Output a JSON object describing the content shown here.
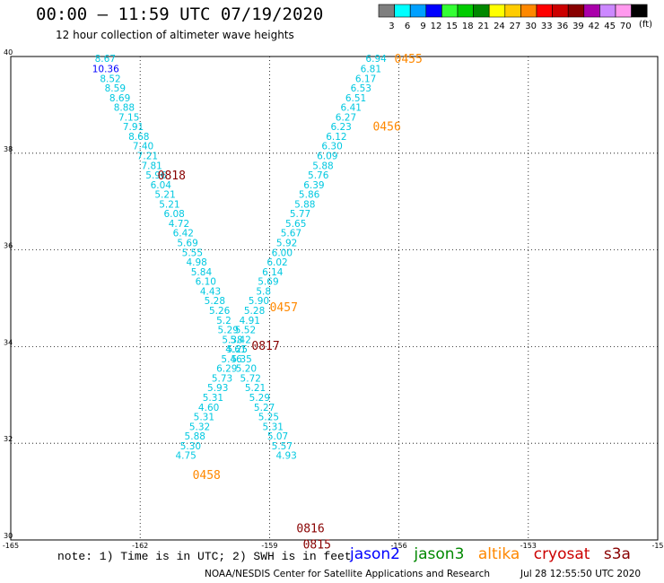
{
  "title": "00:00 – 11:59 UTC 07/19/2020",
  "subtitle": "12 hour collection of altimeter wave heights",
  "colorbar": {
    "unit": "(ft)",
    "bins": [
      {
        "label": "3",
        "color": "#7f7f7f"
      },
      {
        "label": "6",
        "color": "#00ffff"
      },
      {
        "label": "9",
        "color": "#00a0ff"
      },
      {
        "label": "12",
        "color": "#0000ff"
      },
      {
        "label": "15",
        "color": "#33ff33"
      },
      {
        "label": "18",
        "color": "#00cc00"
      },
      {
        "label": "21",
        "color": "#008800"
      },
      {
        "label": "24",
        "color": "#ffff00"
      },
      {
        "label": "27",
        "color": "#ffcc00"
      },
      {
        "label": "30",
        "color": "#ff8800"
      },
      {
        "label": "33",
        "color": "#ff0000"
      },
      {
        "label": "36",
        "color": "#cc0000"
      },
      {
        "label": "39",
        "color": "#880000"
      },
      {
        "label": "42",
        "color": "#aa00aa"
      },
      {
        "label": "45",
        "color": "#cc88ff"
      },
      {
        "label": "70",
        "color": "#ff99ee"
      },
      {
        "label": "",
        "color": "#000000"
      }
    ]
  },
  "note": "note: 1) Time is in UTC; 2) SWH is in feet",
  "satellites": [
    {
      "name": "jason2",
      "color": "#0000ff"
    },
    {
      "name": "jason3",
      "color": "#008800"
    },
    {
      "name": "altika",
      "color": "#ff8800"
    },
    {
      "name": "cryosat",
      "color": "#cc0000"
    },
    {
      "name": "s3a",
      "color": "#880000"
    }
  ],
  "credit": "NOAA/NESDIS Center for Satellite Applications and Research",
  "credit_time": "Jul 28 12:55:50 UTC 2020",
  "chart_data": {
    "type": "scatter",
    "xlim": [
      -165,
      -150
    ],
    "ylim": [
      30,
      40
    ],
    "x_ticks": [
      "-165",
      "-162",
      "-159",
      "-156",
      "-153",
      "-15"
    ],
    "y_ticks": [
      "30",
      "32",
      "34",
      "36",
      "38",
      "40"
    ],
    "grid": true,
    "track_labels": [
      {
        "text": "0455",
        "x": -155.78,
        "y": 39.96,
        "color": "#ff8800"
      },
      {
        "text": "0456",
        "x": -156.28,
        "y": 38.56,
        "color": "#ff8800"
      },
      {
        "text": "0818",
        "x": -161.27,
        "y": 37.55,
        "color": "#880000"
      },
      {
        "text": "0457",
        "x": -158.67,
        "y": 34.82,
        "color": "#ff8800"
      },
      {
        "text": "0817",
        "x": -159.09,
        "y": 34.03,
        "color": "#880000"
      },
      {
        "text": "0458",
        "x": -160.46,
        "y": 31.35,
        "color": "#ff8800"
      },
      {
        "text": "0816",
        "x": -158.05,
        "y": 30.25,
        "color": "#880000"
      },
      {
        "text": "0815",
        "x": -157.9,
        "y": 29.92,
        "color": "#880000"
      }
    ],
    "series": [
      {
        "name": "Track A",
        "color": "#00c8e0",
        "points": [
          {
            "x": -162.81,
            "y": 39.96,
            "v": "8.67"
          },
          {
            "x": -162.8,
            "y": 39.75,
            "v": "10.36",
            "color": "#0000ff"
          },
          {
            "x": -162.69,
            "y": 39.55,
            "v": "8.52"
          },
          {
            "x": -162.58,
            "y": 39.35,
            "v": "8.59"
          },
          {
            "x": -162.47,
            "y": 39.15,
            "v": "8.69"
          },
          {
            "x": -162.37,
            "y": 38.95,
            "v": "8.88"
          },
          {
            "x": -162.26,
            "y": 38.75,
            "v": "7.15"
          },
          {
            "x": -162.16,
            "y": 38.55,
            "v": "7.91"
          },
          {
            "x": -162.03,
            "y": 38.35,
            "v": "8.68"
          },
          {
            "x": -161.93,
            "y": 38.15,
            "v": "7.40"
          },
          {
            "x": -161.83,
            "y": 37.95,
            "v": "7.21"
          },
          {
            "x": -161.73,
            "y": 37.75,
            "v": "7.81"
          },
          {
            "x": -161.63,
            "y": 37.55,
            "v": "5.96"
          },
          {
            "x": -161.52,
            "y": 37.35,
            "v": "6.04"
          },
          {
            "x": -161.42,
            "y": 37.15,
            "v": "5.21"
          },
          {
            "x": -161.32,
            "y": 36.95,
            "v": "5.21"
          },
          {
            "x": -161.21,
            "y": 36.75,
            "v": "6.08"
          },
          {
            "x": -161.1,
            "y": 36.55,
            "v": "4.72"
          },
          {
            "x": -161.0,
            "y": 36.35,
            "v": "6.42"
          },
          {
            "x": -160.9,
            "y": 36.15,
            "v": "5.69"
          },
          {
            "x": -160.79,
            "y": 35.95,
            "v": "5.55"
          },
          {
            "x": -160.69,
            "y": 35.75,
            "v": "4.98"
          },
          {
            "x": -160.58,
            "y": 35.55,
            "v": "5.84"
          },
          {
            "x": -160.48,
            "y": 35.35,
            "v": "6.10"
          },
          {
            "x": -160.37,
            "y": 35.15,
            "v": "4.43"
          },
          {
            "x": -160.27,
            "y": 34.95,
            "v": "5.28"
          },
          {
            "x": -160.16,
            "y": 34.75,
            "v": "5.26"
          },
          {
            "x": -160.06,
            "y": 34.55,
            "v": "5.2"
          },
          {
            "x": -159.96,
            "y": 34.35,
            "v": "5.29"
          },
          {
            "x": -159.86,
            "y": 34.15,
            "v": "5.38"
          },
          {
            "x": -159.75,
            "y": 33.95,
            "v": "5.25"
          },
          {
            "x": -159.65,
            "y": 33.75,
            "v": "5.35"
          },
          {
            "x": -159.54,
            "y": 33.55,
            "v": "5.20"
          },
          {
            "x": -159.44,
            "y": 33.35,
            "v": "5.72"
          },
          {
            "x": -159.33,
            "y": 33.15,
            "v": "5.21"
          },
          {
            "x": -159.23,
            "y": 32.95,
            "v": "5.29"
          },
          {
            "x": -159.12,
            "y": 32.75,
            "v": "5.27"
          },
          {
            "x": -159.02,
            "y": 32.55,
            "v": "5.25"
          },
          {
            "x": -158.92,
            "y": 32.35,
            "v": "5.31"
          },
          {
            "x": -158.81,
            "y": 32.15,
            "v": "5.07"
          },
          {
            "x": -158.71,
            "y": 31.95,
            "v": "5.57"
          },
          {
            "x": -158.61,
            "y": 31.75,
            "v": "4.93"
          }
        ]
      },
      {
        "name": "Track B",
        "color": "#00c8e0",
        "points": [
          {
            "x": -156.53,
            "y": 39.96,
            "v": "6.94"
          },
          {
            "x": -156.65,
            "y": 39.75,
            "v": "6.81"
          },
          {
            "x": -156.77,
            "y": 39.55,
            "v": "6.17"
          },
          {
            "x": -156.88,
            "y": 39.35,
            "v": "6.53"
          },
          {
            "x": -157.0,
            "y": 39.15,
            "v": "6.51"
          },
          {
            "x": -157.11,
            "y": 38.95,
            "v": "6.41"
          },
          {
            "x": -157.23,
            "y": 38.75,
            "v": "6.27"
          },
          {
            "x": -157.34,
            "y": 38.55,
            "v": "6.23"
          },
          {
            "x": -157.45,
            "y": 38.35,
            "v": "6.12"
          },
          {
            "x": -157.55,
            "y": 38.15,
            "v": "6.30"
          },
          {
            "x": -157.66,
            "y": 37.95,
            "v": "6.09"
          },
          {
            "x": -157.76,
            "y": 37.75,
            "v": "5.88"
          },
          {
            "x": -157.87,
            "y": 37.55,
            "v": "5.76"
          },
          {
            "x": -157.97,
            "y": 37.35,
            "v": "6.39"
          },
          {
            "x": -158.08,
            "y": 37.15,
            "v": "5.86"
          },
          {
            "x": -158.18,
            "y": 36.95,
            "v": "5.88"
          },
          {
            "x": -158.29,
            "y": 36.75,
            "v": "5.77"
          },
          {
            "x": -158.39,
            "y": 36.55,
            "v": "5.65"
          },
          {
            "x": -158.5,
            "y": 36.35,
            "v": "5.67"
          },
          {
            "x": -158.6,
            "y": 36.15,
            "v": "5.92"
          },
          {
            "x": -158.71,
            "y": 35.95,
            "v": "6.00"
          },
          {
            "x": -158.82,
            "y": 35.75,
            "v": "6.02"
          },
          {
            "x": -158.93,
            "y": 35.55,
            "v": "6.14"
          },
          {
            "x": -159.03,
            "y": 35.35,
            "v": "5.69"
          },
          {
            "x": -159.14,
            "y": 35.15,
            "v": "5.8"
          },
          {
            "x": -159.25,
            "y": 34.95,
            "v": "5.90"
          },
          {
            "x": -159.35,
            "y": 34.75,
            "v": "5.28"
          },
          {
            "x": -159.46,
            "y": 34.55,
            "v": "4.91"
          },
          {
            "x": -159.56,
            "y": 34.35,
            "v": "5.52"
          },
          {
            "x": -159.67,
            "y": 34.15,
            "v": "5.42"
          },
          {
            "x": -159.78,
            "y": 33.95,
            "v": "4.61"
          },
          {
            "x": -159.88,
            "y": 33.75,
            "v": "5.46"
          },
          {
            "x": -159.99,
            "y": 33.55,
            "v": "6.29"
          },
          {
            "x": -160.1,
            "y": 33.35,
            "v": "5.73"
          },
          {
            "x": -160.2,
            "y": 33.15,
            "v": "5.93"
          },
          {
            "x": -160.31,
            "y": 32.95,
            "v": "5.31"
          },
          {
            "x": -160.41,
            "y": 32.75,
            "v": "4.60"
          },
          {
            "x": -160.52,
            "y": 32.55,
            "v": "5.31"
          },
          {
            "x": -160.62,
            "y": 32.35,
            "v": "5.32"
          },
          {
            "x": -160.73,
            "y": 32.15,
            "v": "5.88"
          },
          {
            "x": -160.83,
            "y": 31.95,
            "v": "5.30"
          },
          {
            "x": -160.94,
            "y": 31.75,
            "v": "4.75"
          }
        ]
      }
    ]
  }
}
